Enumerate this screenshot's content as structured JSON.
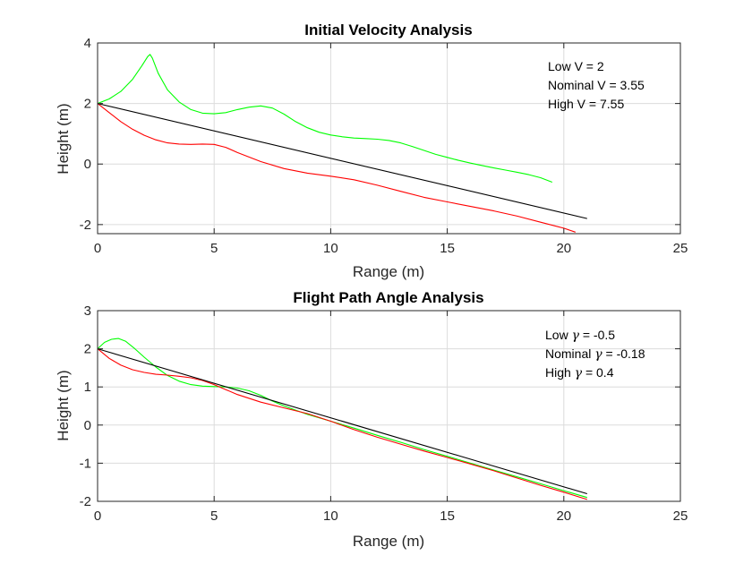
{
  "chart_data": [
    {
      "type": "line",
      "title": "Initial Velocity Analysis",
      "xlabel": "Range (m)",
      "ylabel": "Height (m)",
      "xlim": [
        0,
        25
      ],
      "ylim": [
        -2.3,
        4
      ],
      "xticks": [
        0,
        5,
        10,
        15,
        20,
        25
      ],
      "yticks": [
        -2,
        0,
        2,
        4
      ],
      "xtick_labels": [
        "0",
        "5",
        "10",
        "15",
        "20",
        "25"
      ],
      "ytick_labels": [
        "-2",
        "0",
        "2",
        "4"
      ],
      "grid": true,
      "annotation": {
        "position": "top-right",
        "lines": [
          "Low V = 2",
          "Nominal V = 3.55",
          "High V = 7.55"
        ]
      },
      "series": [
        {
          "color": "#00ff00",
          "x": [
            0,
            0.5,
            1.0,
            1.5,
            1.9,
            2.15,
            2.25,
            2.35,
            2.6,
            3.0,
            3.5,
            4.0,
            4.5,
            5.0,
            5.5,
            6.0,
            6.5,
            7.0,
            7.5,
            8.0,
            8.5,
            9.0,
            9.5,
            10.0,
            10.5,
            11.0,
            11.5,
            12.0,
            12.5,
            13.0,
            13.5,
            14.0,
            14.5,
            15.0,
            15.5,
            16.0,
            16.5,
            17.0,
            17.5,
            18.0,
            18.5,
            19.0,
            19.5
          ],
          "y": [
            2.0,
            2.15,
            2.4,
            2.8,
            3.25,
            3.55,
            3.62,
            3.5,
            3.0,
            2.45,
            2.05,
            1.8,
            1.68,
            1.66,
            1.7,
            1.8,
            1.88,
            1.92,
            1.85,
            1.65,
            1.4,
            1.2,
            1.05,
            0.96,
            0.9,
            0.86,
            0.84,
            0.82,
            0.78,
            0.7,
            0.58,
            0.45,
            0.32,
            0.22,
            0.12,
            0.03,
            -0.05,
            -0.13,
            -0.2,
            -0.27,
            -0.35,
            -0.45,
            -0.6
          ]
        },
        {
          "color": "#ff0000",
          "x": [
            0,
            0.5,
            1.0,
            1.5,
            2.0,
            2.5,
            3.0,
            3.5,
            4.0,
            4.5,
            5.0,
            5.5,
            6.0,
            7.0,
            8.0,
            9.0,
            10.0,
            11.0,
            12.0,
            13.0,
            14.0,
            15.0,
            16.0,
            17.0,
            18.0,
            19.0,
            20.0,
            20.5
          ],
          "y": [
            2.0,
            1.7,
            1.4,
            1.15,
            0.95,
            0.8,
            0.7,
            0.66,
            0.65,
            0.66,
            0.65,
            0.55,
            0.38,
            0.08,
            -0.15,
            -0.3,
            -0.4,
            -0.52,
            -0.7,
            -0.9,
            -1.1,
            -1.25,
            -1.4,
            -1.55,
            -1.72,
            -1.92,
            -2.12,
            -2.25
          ]
        },
        {
          "color": "#000000",
          "x": [
            0,
            21
          ],
          "y": [
            2.0,
            -1.8
          ]
        }
      ]
    },
    {
      "type": "line",
      "title": "Flight Path Angle Analysis",
      "xlabel": "Range (m)",
      "ylabel": "Height (m)",
      "xlim": [
        0,
        25
      ],
      "ylim": [
        -2,
        3
      ],
      "xticks": [
        0,
        5,
        10,
        15,
        20,
        25
      ],
      "yticks": [
        -2,
        -1,
        0,
        1,
        2,
        3
      ],
      "xtick_labels": [
        "0",
        "5",
        "10",
        "15",
        "20",
        "25"
      ],
      "ytick_labels": [
        "-2",
        "-1",
        "0",
        "1",
        "2",
        "3"
      ],
      "grid": true,
      "annotation": {
        "position": "top-right",
        "lines": [
          {
            "prefix": "Low ",
            "symbol": "γ",
            "suffix": " = -0.5"
          },
          {
            "prefix": "Nominal ",
            "symbol": "γ",
            "suffix": " = -0.18"
          },
          {
            "prefix": "High ",
            "symbol": "γ",
            "suffix": " = 0.4"
          }
        ]
      },
      "series": [
        {
          "color": "#00ff00",
          "x": [
            0,
            0.3,
            0.6,
            0.9,
            1.2,
            1.6,
            2.0,
            2.5,
            3.0,
            3.5,
            4.0,
            4.5,
            5.0,
            5.5,
            6.0,
            6.5,
            7.0,
            7.5,
            8.0,
            9.0,
            10.0,
            11.0,
            12.0,
            13.0,
            14.0,
            15.0,
            16.0,
            17.0,
            18.0,
            19.0,
            20.0,
            21.0
          ],
          "y": [
            2.0,
            2.17,
            2.25,
            2.27,
            2.2,
            2.0,
            1.78,
            1.52,
            1.3,
            1.15,
            1.06,
            1.02,
            1.01,
            1.0,
            0.97,
            0.9,
            0.78,
            0.63,
            0.5,
            0.28,
            0.1,
            -0.08,
            -0.27,
            -0.45,
            -0.64,
            -0.82,
            -1.0,
            -1.18,
            -1.36,
            -1.54,
            -1.72,
            -1.9
          ]
        },
        {
          "color": "#ff0000",
          "x": [
            0,
            0.5,
            1.0,
            1.5,
            2.0,
            2.5,
            3.0,
            3.5,
            4.0,
            4.5,
            5.0,
            5.5,
            6.0,
            7.0,
            8.0,
            9.0,
            10.0,
            11.0,
            12.0,
            13.0,
            14.0,
            15.0,
            16.0,
            17.0,
            18.0,
            19.0,
            20.0,
            21.0
          ],
          "y": [
            2.0,
            1.75,
            1.57,
            1.45,
            1.38,
            1.33,
            1.31,
            1.28,
            1.24,
            1.17,
            1.06,
            0.93,
            0.8,
            0.6,
            0.45,
            0.3,
            0.1,
            -0.12,
            -0.32,
            -0.5,
            -0.68,
            -0.85,
            -1.02,
            -1.2,
            -1.39,
            -1.58,
            -1.76,
            -1.95
          ]
        },
        {
          "color": "#000000",
          "x": [
            0,
            21
          ],
          "y": [
            2.0,
            -1.8
          ]
        }
      ]
    }
  ]
}
